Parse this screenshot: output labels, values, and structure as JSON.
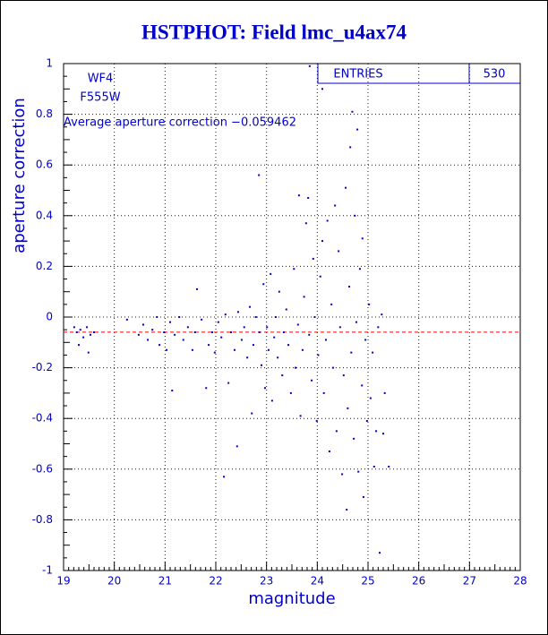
{
  "chart_data": {
    "type": "scatter",
    "title": "HSTPHOT: Field lmc_u4ax74",
    "x_label": "magnitude",
    "y_label": "aperture correction",
    "annotations": [
      "WF4",
      "F555W",
      "Average aperture correction −0.059462"
    ],
    "stats": {
      "label": "ENTRIES",
      "value": 530
    },
    "mean_line": -0.059462,
    "mean_line_color": "#ff0000",
    "grid": true,
    "xlim": [
      19,
      28
    ],
    "ylim": [
      -1,
      1
    ],
    "xticks": [
      19,
      20,
      21,
      22,
      23,
      24,
      25,
      26,
      27,
      28
    ],
    "yticks": [
      -1,
      -0.8,
      -0.6,
      -0.4,
      -0.2,
      0,
      0.2,
      0.4,
      0.6,
      0.8,
      1
    ],
    "color": "#0000cc",
    "x": [
      19.21,
      19.26,
      19.33,
      19.39,
      19.46,
      19.49,
      19.53,
      19.3,
      19.6,
      20.25,
      20.48,
      20.57,
      20.66,
      20.75,
      20.84,
      20.89,
      20.98,
      21.03,
      21.1,
      21.14,
      21.19,
      21.28,
      21.36,
      21.45,
      21.54,
      21.59,
      21.63,
      21.72,
      21.81,
      21.86,
      21.93,
      21.98,
      22.05,
      22.11,
      22.16,
      22.19,
      22.25,
      22.3,
      22.37,
      22.42,
      22.44,
      22.51,
      22.56,
      22.62,
      22.67,
      22.71,
      22.74,
      22.79,
      22.85,
      22.86,
      22.9,
      22.94,
      22.97,
      23.01,
      23.04,
      23.08,
      23.11,
      23.15,
      23.18,
      23.22,
      23.25,
      23.31,
      23.34,
      23.39,
      23.43,
      23.48,
      23.54,
      23.57,
      23.62,
      23.64,
      23.67,
      23.71,
      23.74,
      23.78,
      23.82,
      23.84,
      23.89,
      23.92,
      23.85,
      23.95,
      23.99,
      24.02,
      24.06,
      24.1,
      24.13,
      24.17,
      24.2,
      24.24,
      24.28,
      24.31,
      24.35,
      24.38,
      24.42,
      24.45,
      24.49,
      24.52,
      24.56,
      24.58,
      24.6,
      24.63,
      24.65,
      24.67,
      24.69,
      24.72,
      24.74,
      24.77,
      24.79,
      24.81,
      24.84,
      24.88,
      24.89,
      24.91,
      24.95,
      24.98,
      25.02,
      25.05,
      25.09,
      25.12,
      25.16,
      25.2,
      25.23,
      25.27,
      25.3,
      25.33,
      25.41,
      24.1
    ],
    "values": [
      -0.04,
      -0.06,
      -0.05,
      -0.08,
      -0.04,
      -0.14,
      -0.07,
      -0.11,
      -0.06,
      -0.01,
      -0.07,
      -0.03,
      -0.09,
      -0.05,
      0.0,
      -0.11,
      -0.06,
      -0.13,
      -0.02,
      -0.29,
      -0.07,
      0.0,
      -0.09,
      -0.04,
      -0.13,
      -0.06,
      0.11,
      -0.01,
      -0.28,
      -0.11,
      -0.06,
      -0.14,
      -0.02,
      -0.08,
      -0.63,
      0.01,
      -0.26,
      -0.06,
      -0.13,
      -0.51,
      0.02,
      -0.09,
      -0.04,
      -0.16,
      0.04,
      -0.38,
      -0.11,
      0.0,
      0.56,
      -0.06,
      -0.19,
      0.13,
      -0.28,
      -0.04,
      -0.13,
      0.17,
      -0.33,
      -0.08,
      0.0,
      -0.16,
      0.1,
      -0.23,
      -0.06,
      0.03,
      -0.11,
      -0.3,
      0.19,
      -0.2,
      -0.03,
      0.48,
      -0.39,
      -0.13,
      0.08,
      0.37,
      0.47,
      -0.07,
      -0.25,
      0.23,
      0.99,
      0.0,
      -0.41,
      -0.15,
      0.16,
      0.3,
      -0.3,
      -0.09,
      0.38,
      -0.53,
      0.05,
      -0.2,
      0.44,
      -0.45,
      0.26,
      -0.04,
      -0.62,
      -0.23,
      0.51,
      -0.76,
      -0.36,
      0.12,
      0.67,
      -0.14,
      0.81,
      -0.48,
      0.4,
      -0.02,
      0.74,
      -0.61,
      0.19,
      -0.27,
      0.31,
      -0.71,
      -0.09,
      -0.41,
      0.05,
      -0.32,
      -0.14,
      -0.59,
      -0.45,
      -0.04,
      -0.93,
      0.01,
      -0.46,
      -0.3,
      -0.59,
      0.9
    ]
  }
}
